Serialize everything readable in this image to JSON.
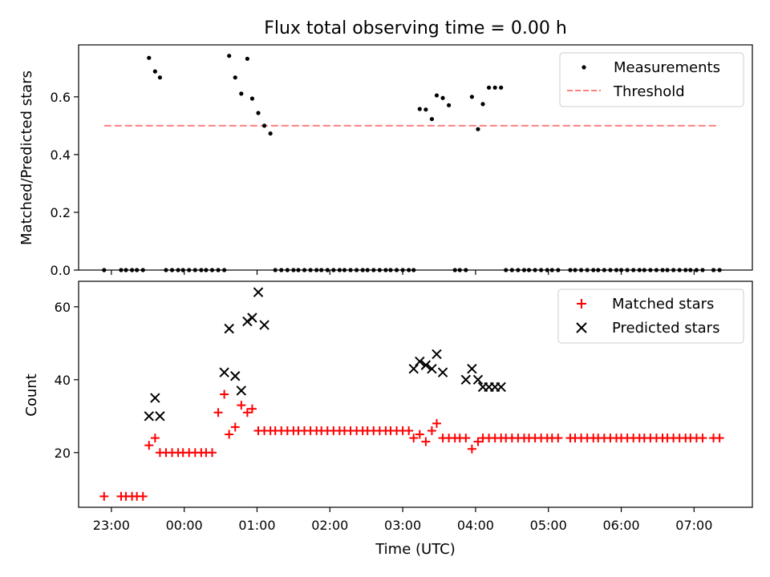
{
  "chart_data": [
    {
      "type": "scatter",
      "title": "Flux total observing time = 0.00 h",
      "xlabel": "",
      "ylabel": "Matched/Predicted stars",
      "xlim": [
        "22:33",
        "07:48"
      ],
      "ylim": [
        0,
        0.78
      ],
      "yticks": [
        0.0,
        0.2,
        0.4,
        0.6
      ],
      "ytick_labels": [
        "0.0",
        "0.2",
        "0.4",
        "0.6"
      ],
      "xticks": [
        "23:00",
        "00:00",
        "01:00",
        "02:00",
        "03:00",
        "04:00",
        "05:00",
        "06:00",
        "07:00"
      ],
      "legend_position": "top-right",
      "series": [
        {
          "name": "Measurements",
          "marker": "dot",
          "color": "#000000",
          "x": [
            "22:54",
            "23:08",
            "23:12",
            "23:17",
            "23:21",
            "23:26",
            "23:31",
            "23:36",
            "23:40",
            "23:45",
            "23:50",
            "23:55",
            "23:59",
            "00:04",
            "00:09",
            "00:14",
            "00:18",
            "00:23",
            "00:28",
            "00:33",
            "00:37",
            "00:42",
            "00:47",
            "00:52",
            "00:56",
            "01:01",
            "01:06",
            "01:11",
            "01:15",
            "01:20",
            "01:25",
            "01:30",
            "01:34",
            "01:39",
            "01:44",
            "01:49",
            "01:53",
            "01:58",
            "02:03",
            "02:08",
            "02:12",
            "02:17",
            "02:22",
            "02:27",
            "02:31",
            "02:36",
            "02:41",
            "02:46",
            "02:50",
            "02:55",
            "03:00",
            "03:05",
            "03:09",
            "03:14",
            "03:19",
            "03:24",
            "03:28",
            "03:33",
            "03:38",
            "03:43",
            "03:47",
            "03:52",
            "03:57",
            "04:02",
            "04:06",
            "04:11",
            "04:16",
            "04:21",
            "04:25",
            "04:30",
            "04:35",
            "04:40",
            "04:44",
            "04:49",
            "04:54",
            "04:59",
            "05:03",
            "05:08",
            "05:18",
            "05:22",
            "05:27",
            "05:32",
            "05:37",
            "05:41",
            "05:46",
            "05:51",
            "05:56",
            "06:00",
            "06:05",
            "06:10",
            "06:15",
            "06:19",
            "06:24",
            "06:29",
            "06:34",
            "06:38",
            "06:43",
            "06:48",
            "06:53",
            "06:57",
            "07:02",
            "07:07",
            "07:16",
            "07:21"
          ],
          "y": [
            0,
            0,
            0,
            0,
            0,
            0,
            0.735,
            0.688,
            0.667,
            0,
            0,
            0,
            0,
            0,
            0,
            0,
            0,
            0,
            0,
            0,
            0.742,
            0.667,
            0.611,
            0.732,
            0.594,
            0.544,
            0.5,
            0.473,
            0,
            0,
            0,
            0,
            0,
            0,
            0,
            0,
            0,
            0,
            0,
            0,
            0,
            0,
            0,
            0,
            0,
            0,
            0,
            0,
            0,
            0,
            0,
            0,
            0,
            0.558,
            0.556,
            0.523,
            0.605,
            0.596,
            0.571,
            0,
            0,
            0,
            0.6,
            0.488,
            0.575,
            0.632,
            0.632,
            0.632,
            0,
            0,
            0,
            0,
            0,
            0,
            0,
            0,
            0,
            0,
            0,
            0,
            0,
            0,
            0,
            0,
            0,
            0,
            0,
            0,
            0,
            0,
            0,
            0,
            0,
            0,
            0,
            0,
            0,
            0,
            0,
            0,
            0,
            0,
            0,
            0
          ]
        },
        {
          "name": "Threshold",
          "style": "dashed",
          "color": "#ff8080",
          "x": [
            "22:54",
            "07:21"
          ],
          "y": [
            0.5,
            0.5
          ]
        }
      ]
    },
    {
      "type": "scatter",
      "title": "",
      "xlabel": "Time (UTC)",
      "ylabel": "Count",
      "xlim": [
        "22:33",
        "07:48"
      ],
      "ylim": [
        5,
        67
      ],
      "yticks": [
        20,
        40,
        60
      ],
      "ytick_labels": [
        "20",
        "40",
        "60"
      ],
      "xticks": [
        "23:00",
        "00:00",
        "01:00",
        "02:00",
        "03:00",
        "04:00",
        "05:00",
        "06:00",
        "07:00"
      ],
      "xtick_labels": [
        "23:00",
        "00:00",
        "01:00",
        "02:00",
        "03:00",
        "04:00",
        "05:00",
        "06:00",
        "07:00"
      ],
      "legend_position": "top-right",
      "series": [
        {
          "name": "Matched stars",
          "marker": "plus",
          "color": "#ff0000",
          "x": [
            "22:54",
            "23:08",
            "23:12",
            "23:17",
            "23:21",
            "23:26",
            "23:31",
            "23:36",
            "23:40",
            "23:45",
            "23:50",
            "23:55",
            "23:59",
            "00:04",
            "00:09",
            "00:14",
            "00:18",
            "00:23",
            "00:28",
            "00:33",
            "00:37",
            "00:42",
            "00:47",
            "00:52",
            "00:56",
            "01:01",
            "01:06",
            "01:11",
            "01:15",
            "01:20",
            "01:25",
            "01:30",
            "01:34",
            "01:39",
            "01:44",
            "01:49",
            "01:53",
            "01:58",
            "02:03",
            "02:08",
            "02:12",
            "02:17",
            "02:22",
            "02:27",
            "02:31",
            "02:36",
            "02:41",
            "02:46",
            "02:50",
            "02:55",
            "03:00",
            "03:05",
            "03:09",
            "03:14",
            "03:19",
            "03:24",
            "03:28",
            "03:33",
            "03:38",
            "03:43",
            "03:47",
            "03:52",
            "03:57",
            "04:02",
            "04:06",
            "04:11",
            "04:16",
            "04:21",
            "04:25",
            "04:30",
            "04:35",
            "04:40",
            "04:44",
            "04:49",
            "04:54",
            "04:59",
            "05:03",
            "05:08",
            "05:18",
            "05:22",
            "05:27",
            "05:32",
            "05:37",
            "05:41",
            "05:46",
            "05:51",
            "05:56",
            "06:00",
            "06:05",
            "06:10",
            "06:15",
            "06:19",
            "06:24",
            "06:29",
            "06:34",
            "06:38",
            "06:43",
            "06:48",
            "06:53",
            "06:57",
            "07:02",
            "07:07",
            "07:16",
            "07:21"
          ],
          "y": [
            8,
            8,
            8,
            8,
            8,
            8,
            22,
            24,
            20,
            20,
            20,
            20,
            20,
            20,
            20,
            20,
            20,
            20,
            31,
            36,
            25,
            27,
            33,
            31,
            32,
            26,
            26,
            26,
            26,
            26,
            26,
            26,
            26,
            26,
            26,
            26,
            26,
            26,
            26,
            26,
            26,
            26,
            26,
            26,
            26,
            26,
            26,
            26,
            26,
            26,
            26,
            26,
            24,
            25,
            23,
            26,
            28,
            24,
            24,
            24,
            24,
            24,
            21,
            23,
            24,
            24,
            24,
            24,
            24,
            24,
            24,
            24,
            24,
            24,
            24,
            24,
            24,
            24,
            24,
            24,
            24,
            24,
            24,
            24,
            24,
            24,
            24,
            24,
            24,
            24,
            24,
            24,
            24,
            24,
            24,
            24,
            24,
            24,
            24,
            24,
            24,
            24,
            24,
            24
          ]
        },
        {
          "name": "Predicted stars",
          "marker": "x",
          "color": "#000000",
          "x": [
            "23:31",
            "23:36",
            "23:40",
            "00:33",
            "00:37",
            "00:42",
            "00:47",
            "00:52",
            "00:56",
            "01:01",
            "01:06",
            "03:09",
            "03:14",
            "03:19",
            "03:24",
            "03:28",
            "03:33",
            "03:52",
            "03:57",
            "04:02",
            "04:06",
            "04:11",
            "04:16",
            "04:21"
          ],
          "y": [
            30,
            35,
            30,
            42,
            54,
            41,
            37,
            56,
            57,
            64,
            55,
            43,
            45,
            44,
            43,
            47,
            42,
            40,
            43,
            40,
            38,
            38,
            38,
            38
          ]
        }
      ]
    }
  ],
  "figure": {
    "title": "Flux total observing time = 0.00 h",
    "top_ylabel": "Matched/Predicted stars",
    "bottom_ylabel": "Count",
    "xlabel": "Time (UTC)",
    "legend_top": [
      "Measurements",
      "Threshold"
    ],
    "legend_bottom": [
      "Matched stars",
      "Predicted stars"
    ]
  }
}
